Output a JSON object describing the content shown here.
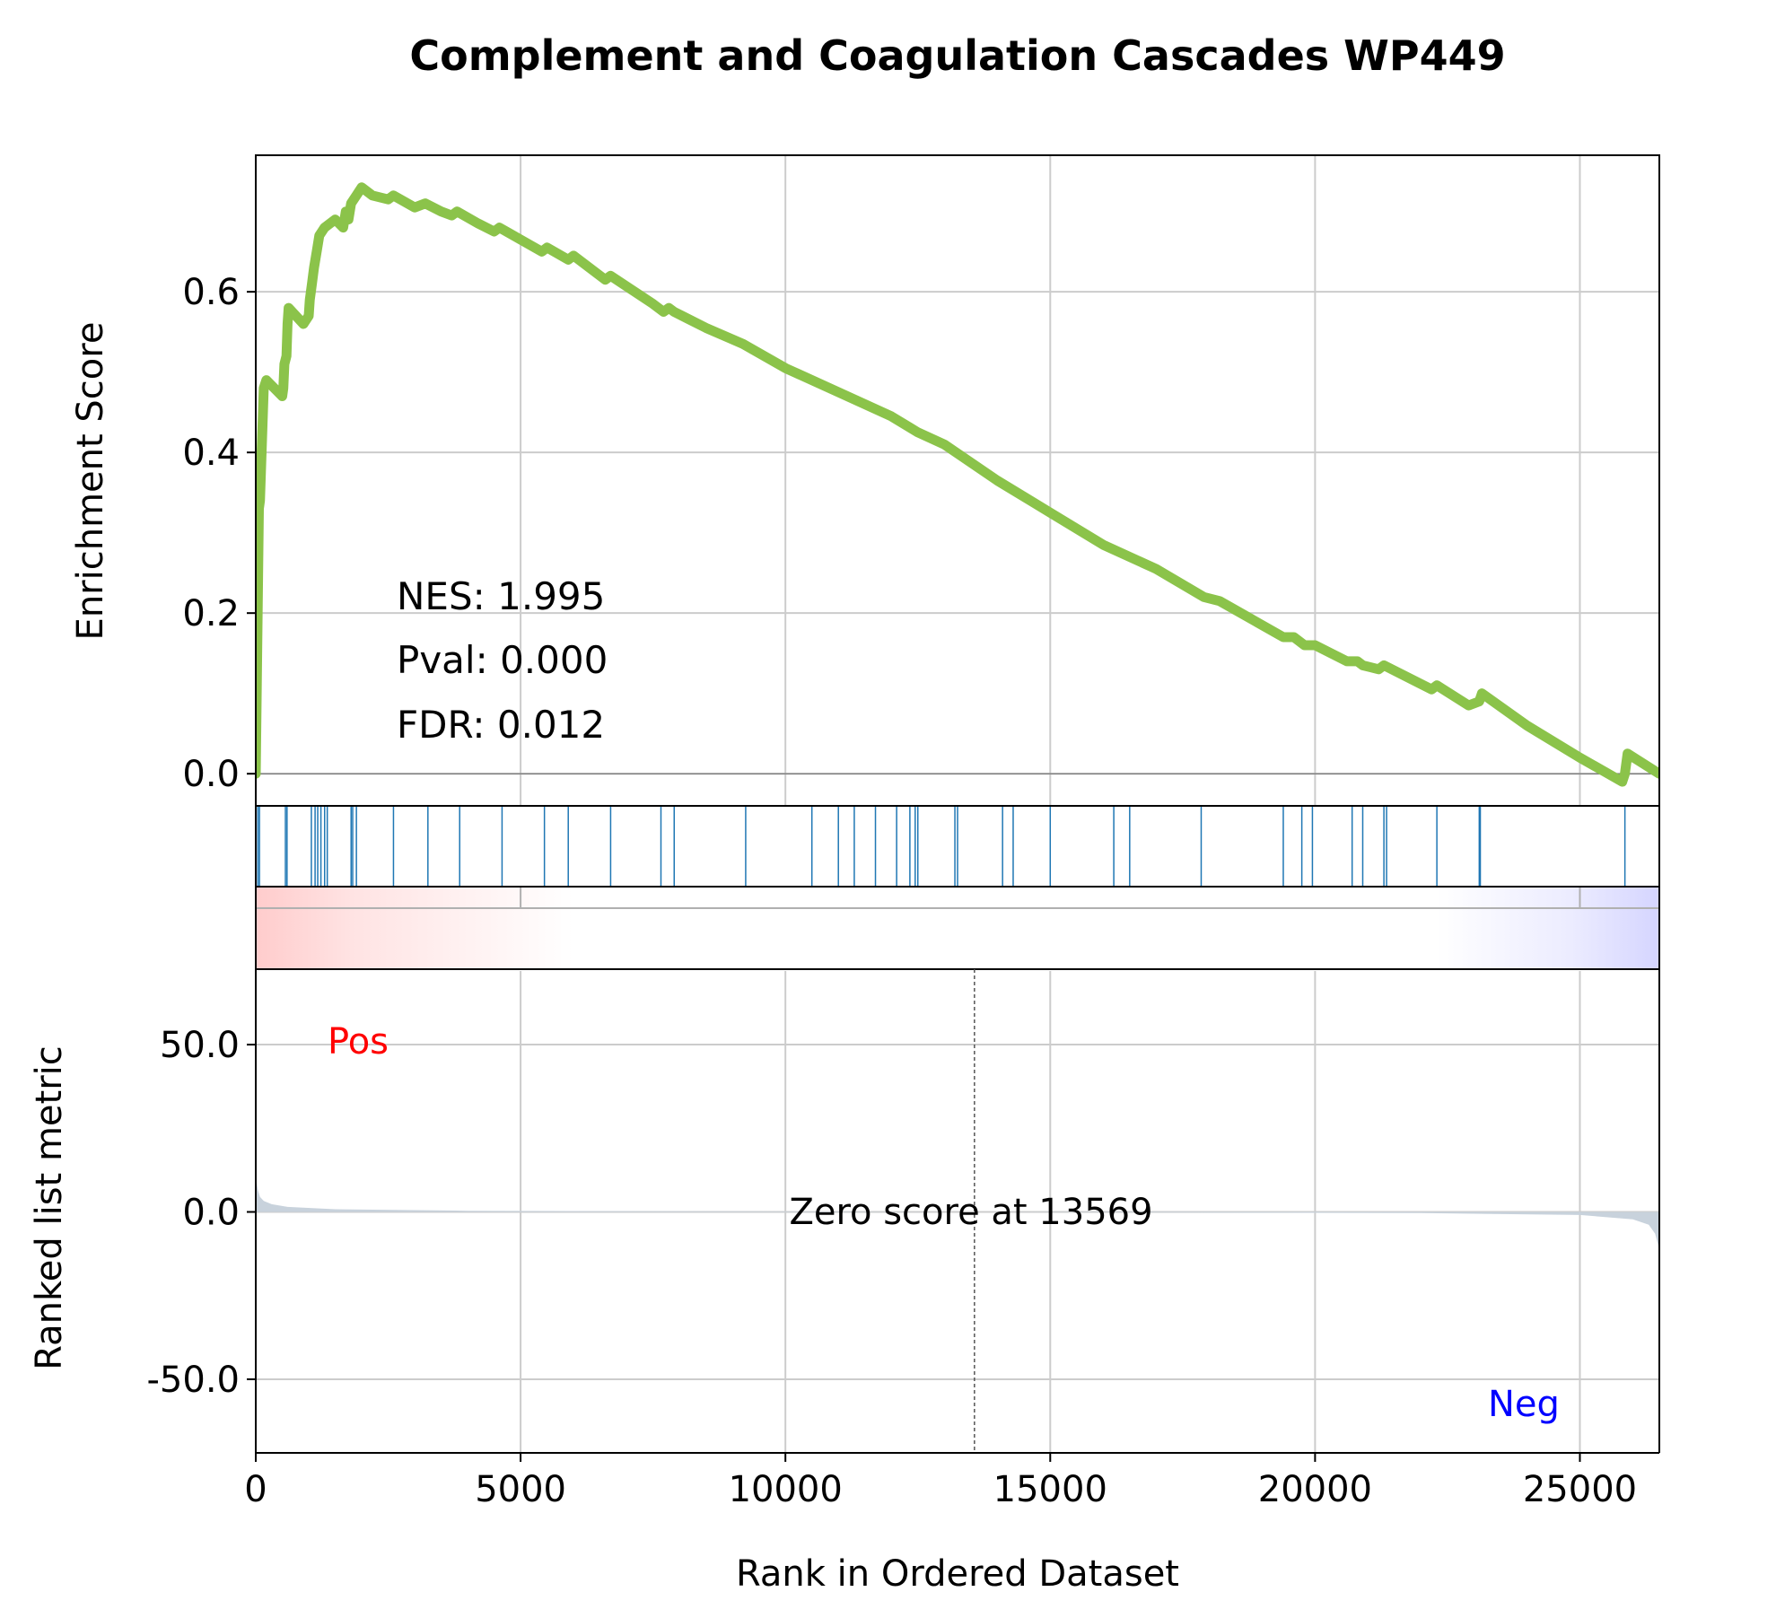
{
  "chart_data": {
    "type": "line",
    "title": "Complement and Coagulation Cascades WP449",
    "xlabel": "Rank in Ordered Dataset",
    "xlim": [
      0,
      26500
    ],
    "xticks": [
      0,
      5000,
      10000,
      15000,
      20000,
      25000
    ],
    "grid": true,
    "enrichment": {
      "ylabel": "Enrichment Score",
      "ylim": [
        -0.04,
        0.77
      ],
      "yticks": [
        0.0,
        0.2,
        0.4,
        0.6
      ],
      "ytick_labels": [
        "0.0",
        "0.2",
        "0.4",
        "0.6"
      ],
      "line_color": "#8bc34a",
      "series": [
        {
          "x": [
            0,
            60,
            80,
            150,
            200,
            500,
            520,
            540,
            580,
            600,
            620,
            900,
            1000,
            1020,
            1060,
            1100,
            1150,
            1200,
            1300,
            1500,
            1650,
            1700,
            1750,
            1800,
            1900,
            2000,
            2200,
            2500,
            2600,
            3000,
            3200,
            3500,
            3700,
            3800,
            4200,
            4500,
            4600,
            5000,
            5400,
            5500,
            5900,
            6000,
            6600,
            6700,
            7500,
            7700,
            7800,
            7900,
            8500,
            9200,
            10000,
            11000,
            12000,
            12500,
            13000,
            14000,
            15000,
            16000,
            17000,
            17900,
            18200,
            19400,
            19600,
            19800,
            20000,
            20600,
            20800,
            20900,
            21200,
            21300,
            22200,
            22300,
            22900,
            23100,
            23150,
            24000,
            25000,
            25800,
            25850,
            25900,
            26500
          ],
          "y": [
            0.0,
            0.33,
            0.34,
            0.48,
            0.49,
            0.47,
            0.48,
            0.51,
            0.52,
            0.56,
            0.58,
            0.56,
            0.57,
            0.59,
            0.61,
            0.63,
            0.65,
            0.67,
            0.68,
            0.69,
            0.68,
            0.7,
            0.69,
            0.71,
            0.72,
            0.73,
            0.72,
            0.715,
            0.72,
            0.705,
            0.71,
            0.7,
            0.695,
            0.7,
            0.685,
            0.675,
            0.68,
            0.665,
            0.65,
            0.655,
            0.64,
            0.645,
            0.615,
            0.62,
            0.585,
            0.575,
            0.58,
            0.575,
            0.555,
            0.535,
            0.505,
            0.475,
            0.445,
            0.425,
            0.41,
            0.365,
            0.325,
            0.285,
            0.255,
            0.22,
            0.215,
            0.17,
            0.17,
            0.16,
            0.16,
            0.14,
            0.14,
            0.135,
            0.13,
            0.135,
            0.105,
            0.11,
            0.085,
            0.09,
            0.1,
            0.06,
            0.02,
            -0.01,
            0.0,
            0.025,
            0.0
          ]
        }
      ]
    },
    "annotation_stats": {
      "nes": "NES: 1.995",
      "pval": "Pval: 0.000",
      "fdr": "FDR: 0.012"
    },
    "hits": [
      40,
      70,
      560,
      590,
      1050,
      1120,
      1170,
      1230,
      1300,
      1350,
      1800,
      1830,
      1900,
      2600,
      3250,
      3850,
      4650,
      5450,
      5900,
      6700,
      7650,
      7900,
      9250,
      10500,
      11000,
      11300,
      11700,
      12100,
      12350,
      12450,
      12500,
      13200,
      13250,
      14100,
      14300,
      15000,
      16200,
      16500,
      17850,
      19400,
      19750,
      19950,
      20700,
      20900,
      21300,
      21350,
      22300,
      23100,
      23120,
      25850
    ],
    "hits_color": "#1f77b4",
    "ranked": {
      "ylabel": "Ranked list metric",
      "ylim": [
        -72,
        72
      ],
      "yticks": [
        50,
        0,
        -50
      ],
      "ytick_labels": [
        "50.0",
        "0.0",
        "-50.0"
      ],
      "fill_color": "#c8d2dc",
      "x": [
        0,
        15,
        40,
        80,
        150,
        300,
        600,
        1500,
        4000,
        13569,
        22000,
        25000,
        26000,
        26300,
        26420,
        26480,
        26500
      ],
      "y": [
        14,
        9,
        6.5,
        4.5,
        3.3,
        2.3,
        1.5,
        0.8,
        0.35,
        0,
        -0.35,
        -0.9,
        -2.2,
        -3.8,
        -6.5,
        -10,
        -14
      ],
      "zero_cross": 13569,
      "zero_label": "Zero score at 13569",
      "pos_label": "Pos",
      "neg_label": "Neg",
      "pos_color": "#ff0000",
      "neg_color": "#0000ff"
    },
    "heatmap": {
      "red_end": 6000,
      "blue_start": 22300
    }
  }
}
